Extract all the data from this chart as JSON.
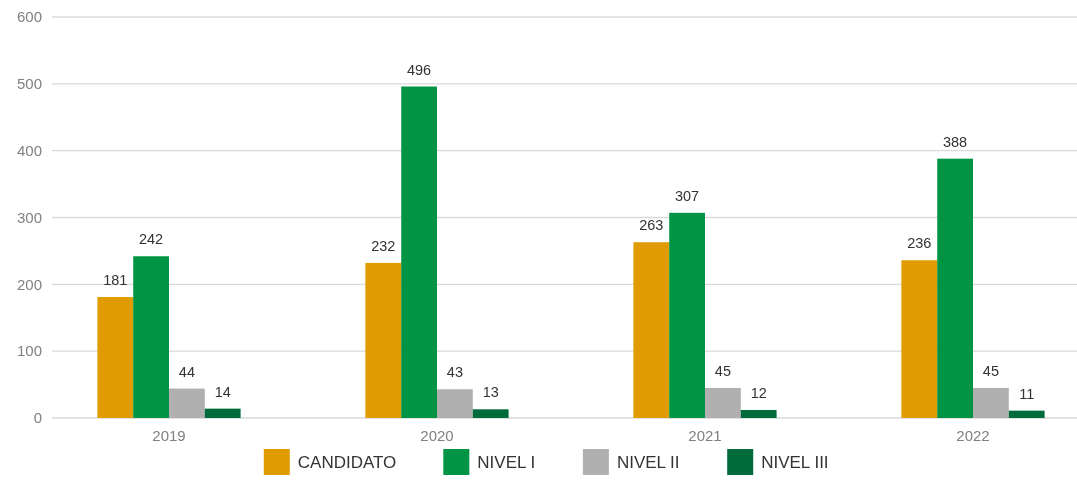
{
  "chart_data": {
    "type": "bar",
    "categories": [
      "2019",
      "2020",
      "2021",
      "2022"
    ],
    "series": [
      {
        "name": "CANDIDATO",
        "color": "#e09b00",
        "values": [
          181,
          232,
          263,
          236
        ]
      },
      {
        "name": "NIVEL I",
        "color": "#009444",
        "values": [
          242,
          496,
          307,
          388
        ]
      },
      {
        "name": "NIVEL II",
        "color": "#b0b0b0",
        "values": [
          44,
          43,
          45,
          45
        ]
      },
      {
        "name": "NIVEL III",
        "color": "#006b3a",
        "values": [
          14,
          13,
          12,
          11
        ]
      }
    ],
    "ylim": [
      0,
      600
    ],
    "yticks": [
      0,
      100,
      200,
      300,
      400,
      500,
      600
    ],
    "grid": "y",
    "legend": "bottom",
    "data_labels": true
  }
}
